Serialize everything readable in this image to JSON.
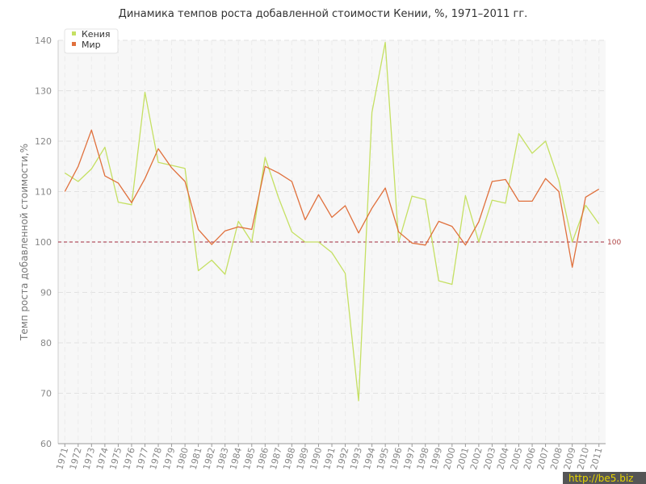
{
  "chart_data": {
    "type": "line",
    "title": "Динамика темпов роста добавленной стоимости Кении, %, 1971–2011 гг.",
    "ylabel": "Темп роста добавленной стоимости,%",
    "xlabel": "",
    "ylim": [
      60,
      140
    ],
    "yticks": [
      60,
      70,
      80,
      90,
      100,
      110,
      120,
      130,
      140
    ],
    "grid": true,
    "legend_position": "top-left",
    "categories": [
      "1971",
      "1972",
      "1973",
      "1974",
      "1975",
      "1976",
      "1977",
      "1978",
      "1979",
      "1980",
      "1981",
      "1982",
      "1983",
      "1984",
      "1985",
      "1986",
      "1987",
      "1988",
      "1989",
      "1990",
      "1991",
      "1992",
      "1993",
      "1994",
      "1995",
      "1996",
      "1997",
      "1998",
      "1999",
      "2000",
      "2001",
      "2002",
      "2003",
      "2004",
      "2005",
      "2006",
      "2007",
      "2008",
      "2009",
      "2010",
      "2011"
    ],
    "series": [
      {
        "name": "Кения",
        "color": "#c5e063",
        "values": [
          113.7,
          112.0,
          114.5,
          118.8,
          107.9,
          107.4,
          129.7,
          115.8,
          115.2,
          114.6,
          94.3,
          96.4,
          93.6,
          104.1,
          100.0,
          116.8,
          108.8,
          102.0,
          100.0,
          100.0,
          97.9,
          93.8,
          68.5,
          125.7,
          139.6,
          100.0,
          109.1,
          108.4,
          92.3,
          91.6,
          109.2,
          100.0,
          108.3,
          107.7,
          121.5,
          117.6,
          120.0,
          112.2,
          100.0,
          107.3,
          103.6
        ]
      },
      {
        "name": "Мир",
        "color": "#e0703c",
        "values": [
          110.0,
          115.0,
          122.2,
          113.1,
          111.7,
          107.8,
          112.6,
          118.5,
          114.7,
          112.0,
          102.5,
          99.5,
          102.2,
          103.0,
          102.5,
          115.0,
          113.7,
          112.0,
          104.4,
          109.4,
          104.9,
          107.2,
          101.8,
          106.7,
          110.7,
          102.0,
          99.8,
          99.4,
          104.1,
          103.1,
          99.4,
          104.0,
          112.0,
          112.4,
          108.1,
          108.1,
          112.6,
          110.0,
          95.0,
          108.9,
          110.5
        ]
      }
    ],
    "reference_line": {
      "value": 100,
      "label": "100",
      "color": "#a0283c"
    }
  },
  "watermark": "http://be5.biz"
}
